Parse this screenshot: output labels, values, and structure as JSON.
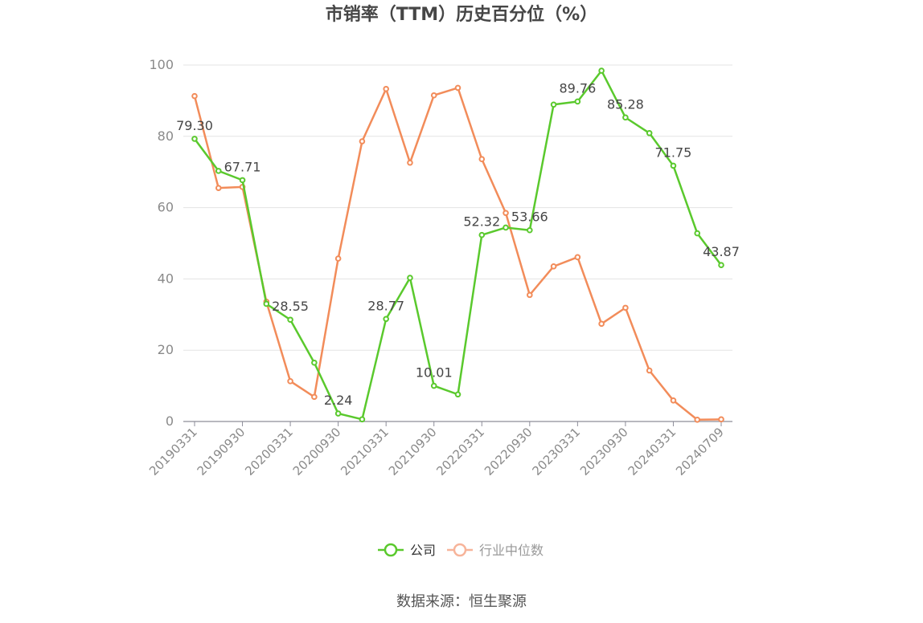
{
  "title": "市销率（TTM）历史百分位（%）",
  "source": "数据来源：恒生聚源",
  "legend": [
    {
      "label": "公司",
      "color": "#5ac92d",
      "active": true
    },
    {
      "label": "行业中位数",
      "color": "#f7b49a",
      "active": false
    }
  ],
  "chart_data": {
    "type": "line",
    "title": "市销率（TTM）历史百分位（%）",
    "ylim": [
      0,
      100
    ],
    "yticks": [
      0,
      20,
      40,
      60,
      80,
      100
    ],
    "grid": true,
    "legend_position": "bottom",
    "xtick_labels": [
      "20190331",
      "20190930",
      "20200331",
      "20200930",
      "20210331",
      "20210930",
      "20220331",
      "20220930",
      "20230331",
      "20230930",
      "20240331",
      "20240709"
    ],
    "x": [
      "20190331",
      "20190630",
      "20190930",
      "20191231",
      "20200331",
      "20200630",
      "20200930",
      "20201231",
      "20210331",
      "20210630",
      "20210930",
      "20211231",
      "20220331",
      "20220630",
      "20220930",
      "20221231",
      "20230331",
      "20230630",
      "20230930",
      "20231231",
      "20240331",
      "20240630",
      "20240709"
    ],
    "series": [
      {
        "name": "公司",
        "color": "#5ac92d",
        "values": [
          79.3,
          70.3,
          67.71,
          33.0,
          28.55,
          16.5,
          2.24,
          0.6,
          28.77,
          40.3,
          10.01,
          7.6,
          52.32,
          54.4,
          53.66,
          88.9,
          89.76,
          98.4,
          85.28,
          80.9,
          71.75,
          52.8,
          43.87
        ]
      },
      {
        "name": "行业中位数",
        "color": "#f28c5a",
        "values": [
          91.3,
          65.5,
          65.8,
          33.6,
          11.3,
          6.9,
          45.7,
          78.6,
          93.3,
          72.6,
          91.5,
          93.6,
          73.6,
          58.5,
          35.5,
          43.5,
          46.1,
          27.4,
          31.9,
          14.3,
          5.9,
          0.5,
          0.6
        ]
      }
    ],
    "data_labels": [
      {
        "series": 0,
        "index": 0,
        "text": "79.30"
      },
      {
        "series": 0,
        "index": 2,
        "text": "67.71"
      },
      {
        "series": 0,
        "index": 4,
        "text": "28.55"
      },
      {
        "series": 0,
        "index": 6,
        "text": "2.24"
      },
      {
        "series": 0,
        "index": 8,
        "text": "28.77"
      },
      {
        "series": 0,
        "index": 10,
        "text": "10.01"
      },
      {
        "series": 0,
        "index": 12,
        "text": "52.32"
      },
      {
        "series": 0,
        "index": 14,
        "text": "53.66"
      },
      {
        "series": 0,
        "index": 16,
        "text": "89.76"
      },
      {
        "series": 0,
        "index": 18,
        "text": "85.28"
      },
      {
        "series": 0,
        "index": 20,
        "text": "71.75"
      },
      {
        "series": 0,
        "index": 22,
        "text": "43.87"
      }
    ]
  }
}
